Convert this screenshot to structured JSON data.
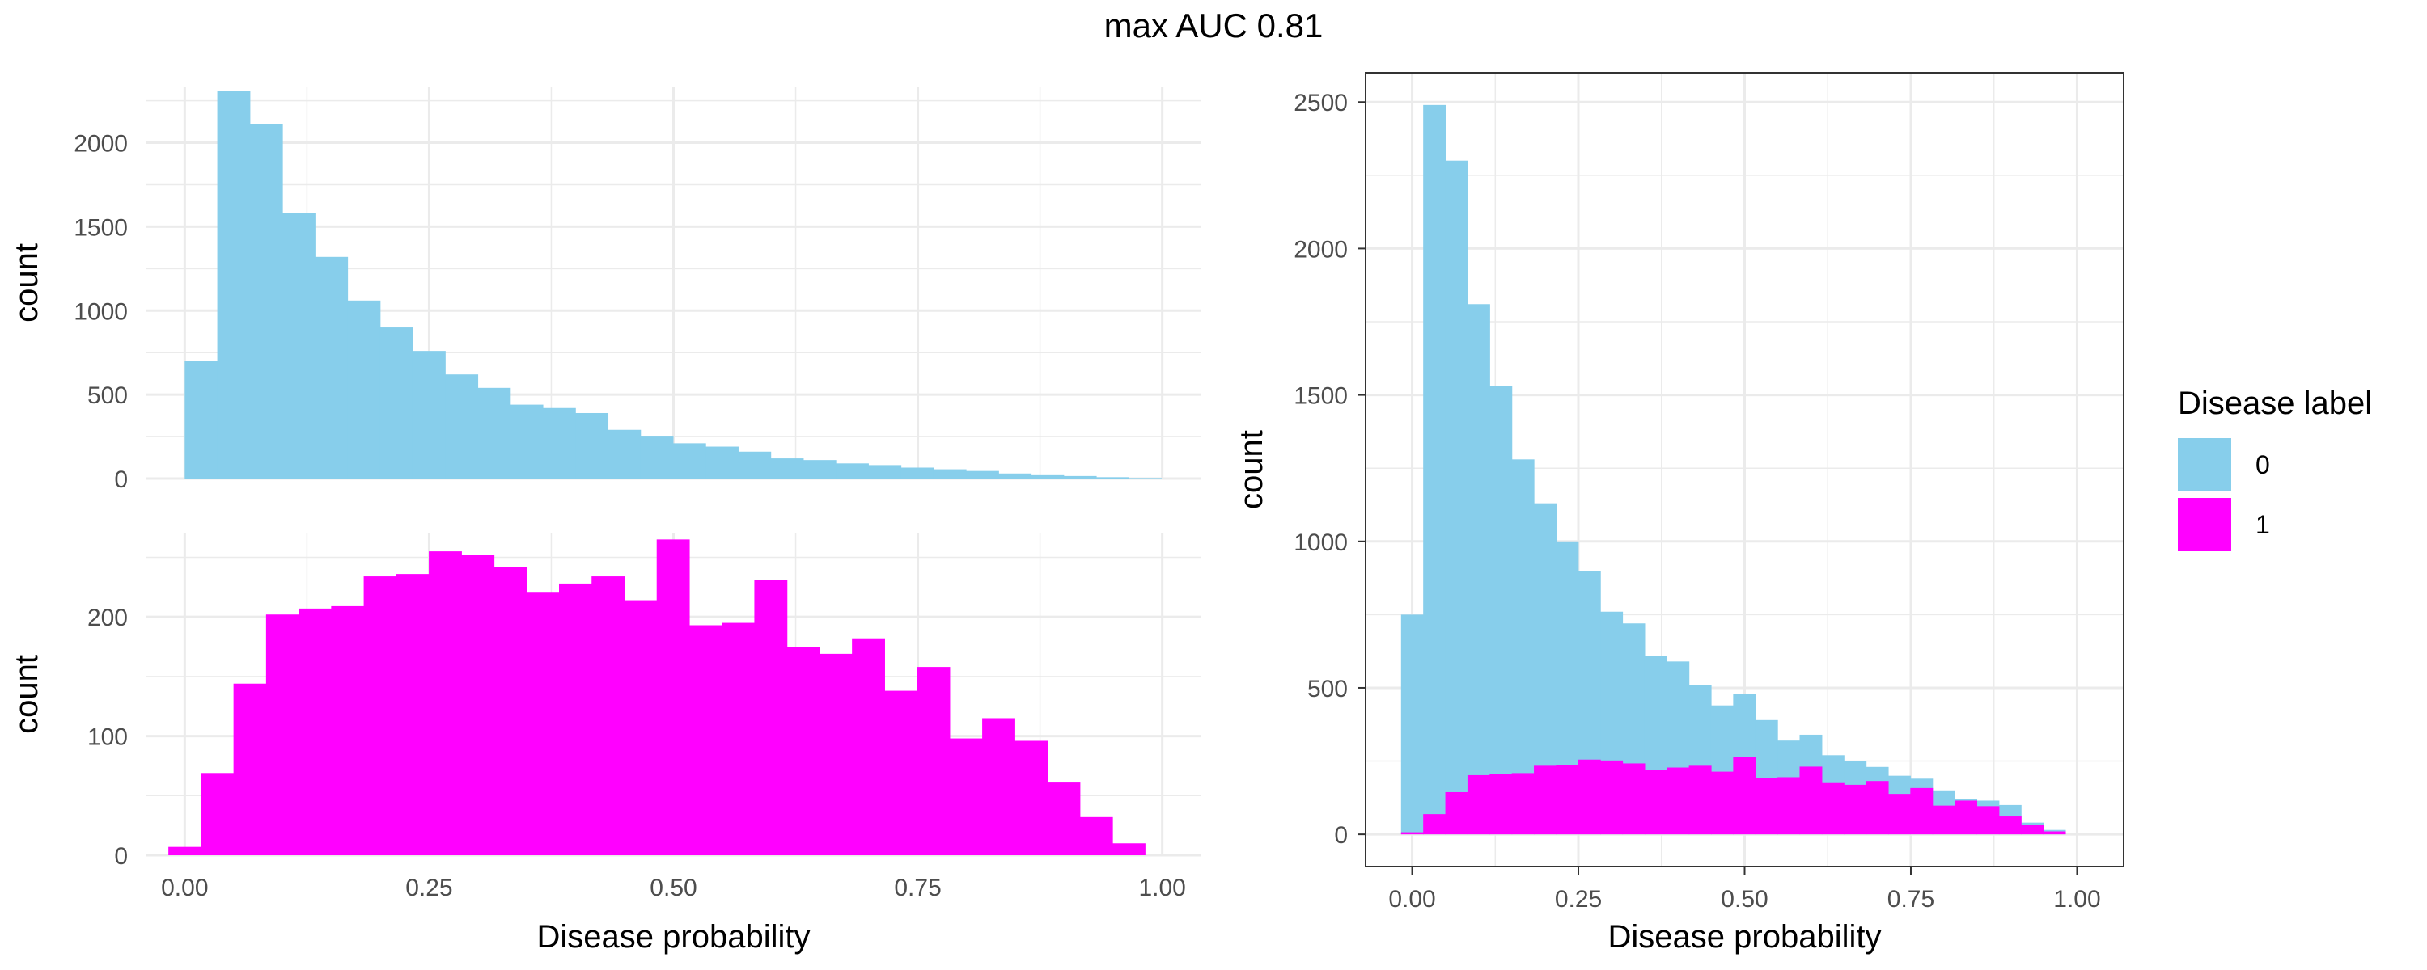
{
  "title": "max AUC 0.81",
  "colors": {
    "label0": "#87CEEB",
    "label1": "#FF00FF",
    "grid": "#ebebeb",
    "panel_border": "#333333"
  },
  "legend": {
    "title": "Disease label",
    "placement": "right",
    "items": [
      {
        "label": "0",
        "color": "#87CEEB"
      },
      {
        "label": "1",
        "color": "#FF00FF"
      }
    ]
  },
  "chart_data": [
    {
      "type": "bar",
      "panel": "top-left",
      "xlabel": "",
      "ylabel": "count",
      "xlim": [
        -0.04,
        1.04
      ],
      "ylim": [
        0,
        2330
      ],
      "yticks": [
        0,
        500,
        1000,
        1500,
        2000
      ],
      "ytick_labels": [
        "0",
        "500",
        "1000",
        "1500",
        "2000"
      ],
      "grid": true,
      "bin_width": 0.0333,
      "bin_start": 0.0,
      "series": [
        {
          "name": "0",
          "values": [
            700,
            2310,
            2110,
            1580,
            1320,
            1060,
            900,
            760,
            620,
            540,
            440,
            420,
            390,
            290,
            250,
            210,
            190,
            160,
            120,
            110,
            90,
            80,
            65,
            55,
            45,
            30,
            20,
            15,
            8,
            3
          ]
        }
      ]
    },
    {
      "type": "bar",
      "panel": "bottom-left",
      "xlabel": "Disease probability",
      "ylabel": "count",
      "xlim": [
        -0.04,
        1.04
      ],
      "ylim": [
        0,
        270
      ],
      "xticks": [
        0,
        0.25,
        0.5,
        0.75,
        1.0
      ],
      "xtick_labels": [
        "0.00",
        "0.25",
        "0.50",
        "0.75",
        "1.00"
      ],
      "yticks": [
        0,
        100,
        200
      ],
      "ytick_labels": [
        "0",
        "100",
        "200"
      ],
      "grid": true,
      "bin_width": 0.0333,
      "bin_start": -0.0167,
      "series": [
        {
          "name": "1",
          "values": [
            7,
            69,
            144,
            202,
            207,
            209,
            234,
            236,
            255,
            252,
            242,
            221,
            228,
            234,
            214,
            265,
            193,
            195,
            231,
            175,
            169,
            182,
            138,
            158,
            98,
            115,
            96,
            61,
            32,
            10
          ]
        }
      ]
    },
    {
      "type": "bar",
      "panel": "right",
      "stacked": false,
      "xlabel": "Disease probability",
      "ylabel": "count",
      "xlim": [
        -0.07,
        1.07
      ],
      "ylim": [
        -110,
        2600
      ],
      "xticks": [
        0,
        0.25,
        0.5,
        0.75,
        1.0
      ],
      "xtick_labels": [
        "0.00",
        "0.25",
        "0.50",
        "0.75",
        "1.00"
      ],
      "yticks": [
        0,
        500,
        1000,
        1500,
        2000,
        2500
      ],
      "ytick_labels": [
        "0",
        "500",
        "1000",
        "1500",
        "2000",
        "2500"
      ],
      "grid": true,
      "bin_width": 0.0333,
      "bin_start": -0.0167,
      "series": [
        {
          "name": "0",
          "values": [
            750,
            2490,
            2300,
            1810,
            1530,
            1280,
            1130,
            1000,
            900,
            760,
            720,
            610,
            590,
            510,
            440,
            480,
            390,
            320,
            340,
            270,
            250,
            230,
            200,
            190,
            150,
            120,
            115,
            100,
            40,
            15
          ]
        },
        {
          "name": "1",
          "values": [
            7,
            69,
            144,
            202,
            207,
            209,
            234,
            236,
            255,
            252,
            242,
            221,
            228,
            234,
            214,
            265,
            193,
            195,
            231,
            175,
            169,
            182,
            138,
            158,
            98,
            115,
            96,
            61,
            32,
            10
          ]
        }
      ]
    }
  ]
}
